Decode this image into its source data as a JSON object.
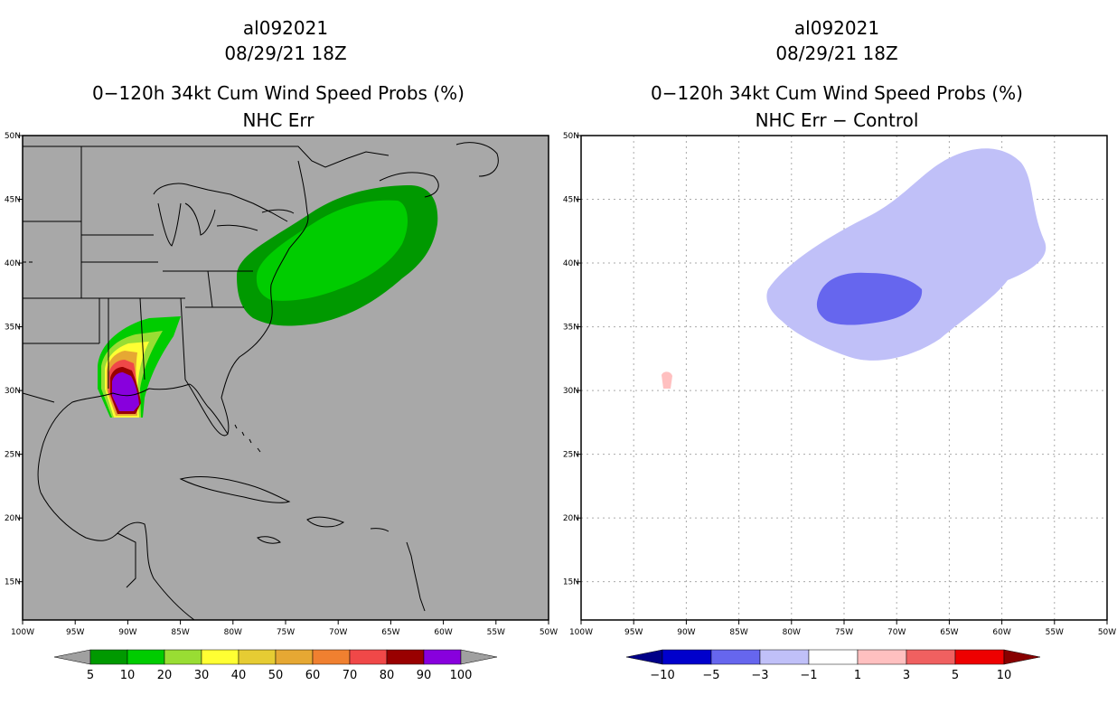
{
  "panels": [
    {
      "id": "left",
      "title_lines": [
        "al092021",
        "08/29/21 18Z",
        "0−120h 34kt Cum Wind Speed Probs (%)",
        "NHC Err"
      ],
      "background": "#a8a8a8",
      "grid": false
    },
    {
      "id": "right",
      "title_lines": [
        "al092021",
        "08/29/21 18Z",
        "0−120h 34kt Cum Wind Speed Probs (%)",
        "NHC Err − Control"
      ],
      "background": "#ffffff",
      "grid": true
    }
  ],
  "map": {
    "lon_range": [
      -100,
      -50
    ],
    "lat_range": [
      12,
      50
    ],
    "lon_ticks": [
      -100,
      -95,
      -90,
      -85,
      -80,
      -75,
      -70,
      -65,
      -60,
      -55,
      -50
    ],
    "lon_labels": [
      "100W",
      "95W",
      "90W",
      "85W",
      "80W",
      "75W",
      "70W",
      "65W",
      "60W",
      "55W",
      "50W"
    ],
    "lat_ticks": [
      15,
      20,
      25,
      30,
      35,
      40,
      45,
      50
    ],
    "lat_labels": [
      "15N",
      "20N",
      "25N",
      "30N",
      "35N",
      "40N",
      "45N",
      "50N"
    ]
  },
  "colorbars": [
    {
      "id": "prob",
      "colors": [
        "#009900",
        "#00cc00",
        "#99dd33",
        "#ffff33",
        "#e6cc33",
        "#e6a833",
        "#f08030",
        "#f04848",
        "#990000",
        "#8800dd"
      ],
      "end_colors": [
        "#a0a0a0",
        "#a0a0a0"
      ],
      "labels": [
        "5",
        "10",
        "20",
        "30",
        "40",
        "50",
        "60",
        "70",
        "80",
        "90",
        "100"
      ]
    },
    {
      "id": "diff",
      "colors": [
        "#0000cc",
        "#6666ee",
        "#c0c0f8",
        "#ffffff",
        "#ffc0c0",
        "#f06060",
        "#ee0000"
      ],
      "end_colors": [
        "#000088",
        "#880000"
      ],
      "labels": [
        "−10",
        "−5",
        "−3",
        "−1",
        "1",
        "3",
        "5",
        "10"
      ]
    }
  ]
}
